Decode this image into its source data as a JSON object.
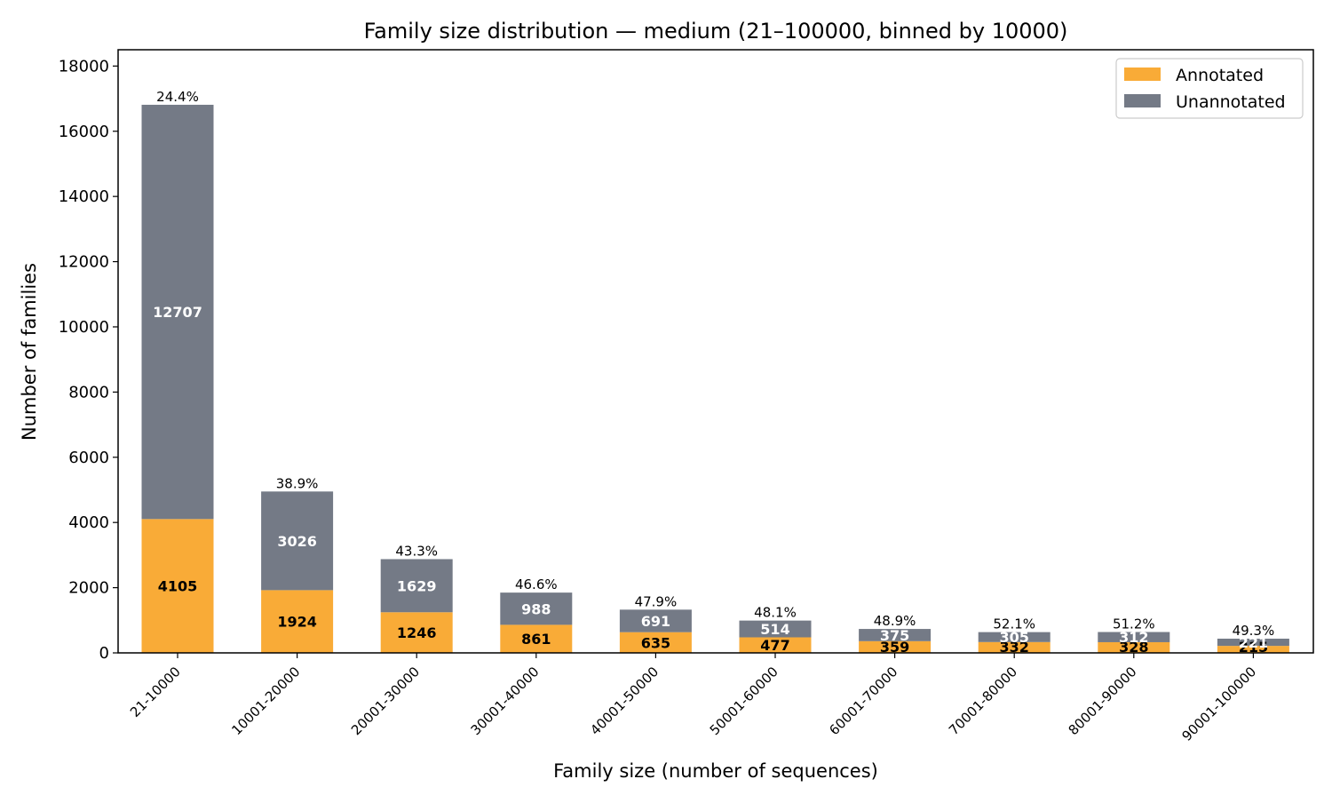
{
  "chart_data": {
    "type": "bar",
    "stacked": true,
    "title": "Family size distribution — medium (21–100000, binned by 10000)",
    "xlabel": "Family size (number of sequences)",
    "ylabel": "Number of families",
    "ylim": [
      0,
      18500
    ],
    "yticks": [
      0,
      2000,
      4000,
      6000,
      8000,
      10000,
      12000,
      14000,
      16000,
      18000
    ],
    "grid": false,
    "legend_position": "top-right",
    "categories": [
      "21-10000",
      "10001-20000",
      "20001-30000",
      "30001-40000",
      "40001-50000",
      "50001-60000",
      "60001-70000",
      "70001-80000",
      "80001-90000",
      "90001-100000"
    ],
    "series": [
      {
        "name": "Annotated",
        "color": "#f9ab37",
        "values": [
          4105,
          1924,
          1246,
          861,
          635,
          477,
          359,
          332,
          328,
          215
        ]
      },
      {
        "name": "Unannotated",
        "color": "#747a86",
        "values": [
          12707,
          3026,
          1629,
          988,
          691,
          514,
          375,
          305,
          312,
          221
        ]
      }
    ],
    "percent_labels": [
      "24.4%",
      "38.9%",
      "43.3%",
      "46.6%",
      "47.9%",
      "48.1%",
      "48.9%",
      "52.1%",
      "51.2%",
      "49.3%"
    ]
  }
}
